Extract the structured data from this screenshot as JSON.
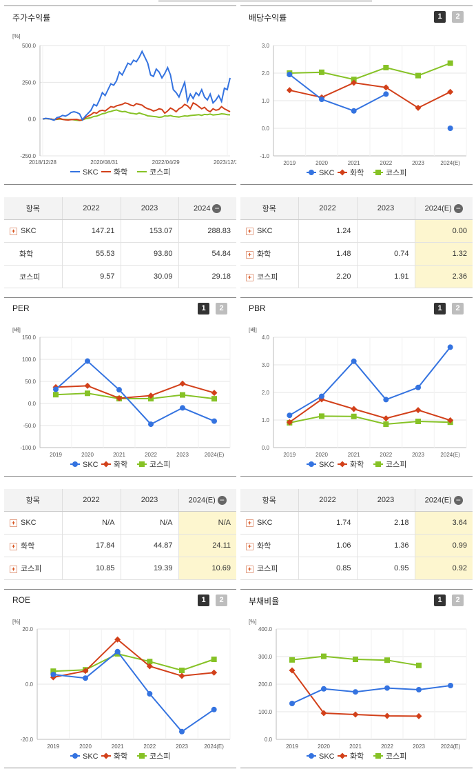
{
  "colors": {
    "skc": "#3473e0",
    "chem": "#d2401a",
    "kospi": "#86c226"
  },
  "legend": {
    "skc": "SKC",
    "chem": "화학",
    "kospi": "코스피"
  },
  "pager": {
    "p1": "1",
    "p2": "2"
  },
  "panels": {
    "stock": {
      "title": "주가수익률",
      "chart_data": {
        "type": "line",
        "unit": "[%]",
        "yticks": [
          "500.0",
          "250.0",
          "0.0",
          "-250.0"
        ],
        "ylim": [
          -250,
          500
        ],
        "xticks": [
          "2018/12/28",
          "2020/08/31",
          "2022/04/29",
          "2023/12/28"
        ],
        "series": [
          {
            "name": "SKC",
            "values": [
              0,
              5,
              3,
              -2,
              -8,
              10,
              15,
              25,
              20,
              30,
              45,
              50,
              45,
              35,
              -5,
              20,
              40,
              60,
              100,
              90,
              130,
              180,
              160,
              200,
              240,
              230,
              260,
              320,
              300,
              340,
              380,
              370,
              400,
              390,
              420,
              460,
              420,
              380,
              300,
              290,
              340,
              320,
              280,
              310,
              350,
              300,
              200,
              180,
              150,
              200,
              250,
              120,
              170,
              140,
              180,
              160,
              200,
              150,
              130,
              170,
              110,
              130,
              160,
              120,
              210,
              200,
              280
            ]
          },
          {
            "name": "화학",
            "values": [
              0,
              4,
              2,
              0,
              -5,
              0,
              5,
              -2,
              -5,
              -6,
              -4,
              -3,
              -2,
              -8,
              -6,
              10,
              20,
              30,
              45,
              40,
              55,
              60,
              55,
              70,
              85,
              80,
              90,
              95,
              100,
              110,
              105,
              95,
              90,
              105,
              100,
              95,
              80,
              70,
              65,
              55,
              60,
              70,
              65,
              40,
              55,
              75,
              65,
              50,
              70,
              80,
              100,
              90,
              70,
              110,
              100,
              85,
              70,
              80,
              60,
              50,
              70,
              60,
              65,
              85,
              70,
              60,
              50
            ]
          },
          {
            "name": "코스피",
            "values": [
              0,
              3,
              2,
              0,
              -3,
              -2,
              0,
              -2,
              -3,
              -4,
              -3,
              -5,
              -8,
              -10,
              -6,
              2,
              6,
              10,
              18,
              20,
              28,
              36,
              40,
              48,
              52,
              58,
              62,
              55,
              50,
              52,
              45,
              40,
              38,
              34,
              42,
              35,
              30,
              22,
              20,
              18,
              16,
              12,
              14,
              22,
              20,
              24,
              18,
              16,
              14,
              18,
              22,
              20,
              24,
              26,
              28,
              30,
              25,
              32,
              30,
              34,
              28,
              30,
              32,
              36,
              34,
              30,
              29
            ]
          }
        ]
      }
    },
    "dividend": {
      "title": "배당수익률",
      "chart_data": {
        "type": "line",
        "yticks": [
          "3.0",
          "2.0",
          "1.0",
          "0.0",
          "-1.0"
        ],
        "ylim": [
          -1,
          3
        ],
        "categories": [
          "2019",
          "2020",
          "2021",
          "2022",
          "2023",
          "2024(E)"
        ],
        "series": [
          {
            "name": "SKC",
            "values": [
              1.95,
              1.05,
              0.63,
              1.24,
              null,
              0.0
            ]
          },
          {
            "name": "화학",
            "values": [
              1.38,
              1.12,
              1.65,
              1.48,
              0.74,
              1.32
            ]
          },
          {
            "name": "코스피",
            "values": [
              2.0,
              2.03,
              1.77,
              2.2,
              1.91,
              2.36
            ]
          }
        ]
      }
    },
    "per": {
      "title": "PER",
      "chart_data": {
        "type": "line",
        "unit": "[배]",
        "yticks": [
          "150.0",
          "100.0",
          "50.0",
          "0.0",
          "-50.0",
          "-100.0"
        ],
        "ylim": [
          -100,
          150
        ],
        "categories": [
          "2019",
          "2020",
          "2021",
          "2022",
          "2023",
          "2024(E)"
        ],
        "series": [
          {
            "name": "SKC",
            "values": [
              32,
              96,
              31,
              -47,
              -10,
              -40
            ]
          },
          {
            "name": "화학",
            "values": [
              37,
              40,
              12,
              17.84,
              44.87,
              24.11
            ]
          },
          {
            "name": "코스피",
            "values": [
              20,
              23,
              11,
              10.85,
              19.39,
              10.69
            ]
          }
        ]
      }
    },
    "pbr": {
      "title": "PBR",
      "chart_data": {
        "type": "line",
        "unit": "[배]",
        "yticks": [
          "4.0",
          "3.0",
          "2.0",
          "1.0",
          "0.0"
        ],
        "ylim": [
          0,
          4
        ],
        "categories": [
          "2019",
          "2020",
          "2021",
          "2022",
          "2023",
          "2024(E)"
        ],
        "series": [
          {
            "name": "SKC",
            "values": [
              1.17,
              1.86,
              3.13,
              1.74,
              2.18,
              3.64
            ]
          },
          {
            "name": "화학",
            "values": [
              0.92,
              1.75,
              1.4,
              1.06,
              1.36,
              0.99
            ]
          },
          {
            "name": "코스피",
            "values": [
              0.9,
              1.14,
              1.13,
              0.85,
              0.95,
              0.92
            ]
          }
        ]
      }
    },
    "roe": {
      "title": "ROE",
      "chart_data": {
        "type": "line",
        "unit": "[%]",
        "yticks": [
          "20.0",
          "0.0",
          "-20.0"
        ],
        "ylim": [
          -20,
          20
        ],
        "categories": [
          "2019",
          "2020",
          "2021",
          "2022",
          "2023",
          "2024(E)"
        ],
        "series": [
          {
            "name": "SKC",
            "values": [
              3.5,
              2.2,
              11.8,
              -3.5,
              -17.2,
              -9.2
            ]
          },
          {
            "name": "화학",
            "values": [
              2.5,
              4.8,
              16.2,
              6.5,
              3.0,
              4.2
            ]
          },
          {
            "name": "코스피",
            "values": [
              4.7,
              5.2,
              11.0,
              8.2,
              5.0,
              9.0
            ]
          }
        ]
      }
    },
    "debt": {
      "title": "부채비율",
      "chart_data": {
        "type": "line",
        "unit": "[%]",
        "yticks": [
          "400.0",
          "300.0",
          "200.0",
          "100.0",
          "0.0"
        ],
        "ylim": [
          0,
          400
        ],
        "categories": [
          "2019",
          "2020",
          "2021",
          "2022",
          "2023",
          "2024(E)"
        ],
        "series": [
          {
            "name": "SKC",
            "values": [
              130,
              183,
              172,
              186,
              180,
              195
            ]
          },
          {
            "name": "화학",
            "values": [
              250,
              95,
              90,
              85,
              84,
              null
            ]
          },
          {
            "name": "코스피",
            "values": [
              288,
              301,
              290,
              287,
              268,
              null
            ]
          }
        ]
      }
    }
  },
  "tables": {
    "stock": {
      "head": [
        "항목",
        "2022",
        "2023",
        "2024"
      ],
      "rows": [
        {
          "label": "SKC",
          "expand": true,
          "cells": [
            "147.21",
            "153.07",
            "288.83"
          ]
        },
        {
          "label": "화학",
          "expand": false,
          "cells": [
            "55.53",
            "93.80",
            "54.84"
          ]
        },
        {
          "label": "코스피",
          "expand": false,
          "cells": [
            "9.57",
            "30.09",
            "29.18"
          ]
        }
      ]
    },
    "dividend": {
      "head": [
        "항목",
        "2022",
        "2023",
        "2024(E)"
      ],
      "rows": [
        {
          "label": "SKC",
          "expand": true,
          "cells": [
            "1.24",
            "",
            "0.00"
          ]
        },
        {
          "label": "화학",
          "expand": true,
          "cells": [
            "1.48",
            "0.74",
            "1.32"
          ]
        },
        {
          "label": "코스피",
          "expand": true,
          "cells": [
            "2.20",
            "1.91",
            "2.36"
          ]
        }
      ]
    },
    "per": {
      "head": [
        "항목",
        "2022",
        "2023",
        "2024(E)"
      ],
      "rows": [
        {
          "label": "SKC",
          "expand": true,
          "cells": [
            "N/A",
            "N/A",
            "N/A"
          ]
        },
        {
          "label": "화학",
          "expand": true,
          "cells": [
            "17.84",
            "44.87",
            "24.11"
          ]
        },
        {
          "label": "코스피",
          "expand": true,
          "cells": [
            "10.85",
            "19.39",
            "10.69"
          ]
        }
      ]
    },
    "pbr": {
      "head": [
        "항목",
        "2022",
        "2023",
        "2024(E)"
      ],
      "rows": [
        {
          "label": "SKC",
          "expand": true,
          "cells": [
            "1.74",
            "2.18",
            "3.64"
          ]
        },
        {
          "label": "화학",
          "expand": true,
          "cells": [
            "1.06",
            "1.36",
            "0.99"
          ]
        },
        {
          "label": "코스피",
          "expand": true,
          "cells": [
            "0.85",
            "0.95",
            "0.92"
          ]
        }
      ]
    }
  }
}
